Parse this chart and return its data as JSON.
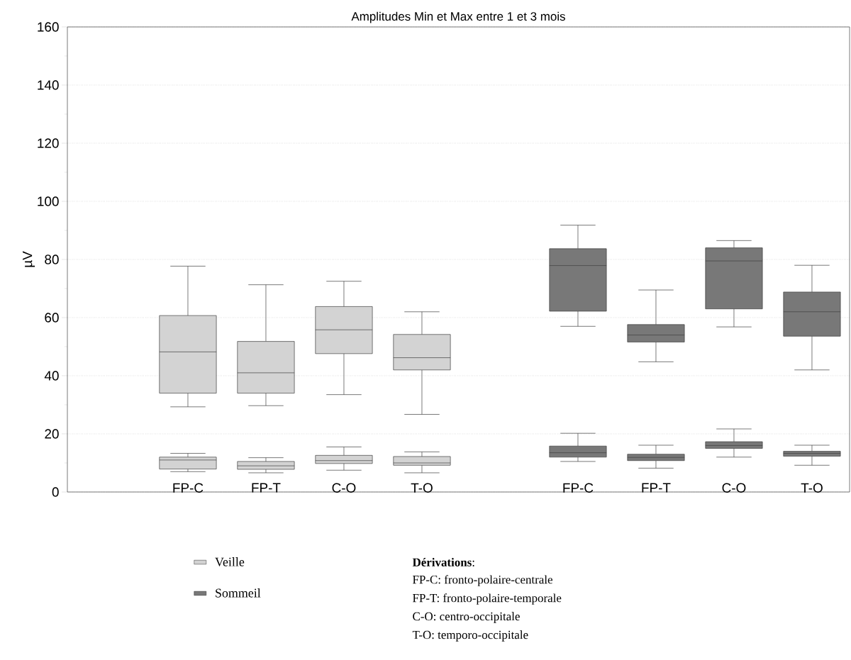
{
  "chart_data": {
    "type": "box",
    "title": "Amplitudes Min et Max entre 1 et 3 mois",
    "ylabel": "µV",
    "categories": [
      "FP-C",
      "FP-T",
      "C-O",
      "T-O",
      null,
      "FP-C",
      "FP-T",
      "C-O",
      "T-O"
    ],
    "ylim": [
      0,
      160
    ],
    "yticks": [
      0,
      20,
      40,
      60,
      80,
      100,
      120,
      140,
      160
    ],
    "grid": "y",
    "legend": "bottom",
    "series": [
      {
        "name": "Veille",
        "color": "#d3d3d3",
        "boxes": [
          {
            "low": 29.3,
            "q1": 34,
            "median": 48.2,
            "q3": 60.7,
            "high": 77.7
          },
          {
            "low": 29.7,
            "q1": 34,
            "median": 41,
            "q3": 51.8,
            "high": 71.3
          },
          {
            "low": 33.5,
            "q1": 47.6,
            "median": 55.8,
            "q3": 63.8,
            "high": 72.5
          },
          {
            "low": 26.7,
            "q1": 42,
            "median": 46.2,
            "q3": 54.2,
            "high": 62
          },
          null,
          null,
          null,
          null,
          null
        ]
      },
      {
        "color": "#d3d3d3",
        "boxes": [
          {
            "low": 7,
            "q1": 7.9,
            "median": 11,
            "q3": 12,
            "high": 13.3
          },
          {
            "low": 6.6,
            "q1": 7.8,
            "median": 9,
            "q3": 10.5,
            "high": 11.8
          },
          {
            "low": 7.5,
            "q1": 9.8,
            "median": 10.8,
            "q3": 12.6,
            "high": 15.5
          },
          {
            "low": 6.6,
            "q1": 9.2,
            "median": 10,
            "q3": 12.2,
            "high": 13.8
          },
          null,
          null,
          null,
          null,
          null
        ]
      },
      {
        "name": "Sommeil",
        "color": "#787878",
        "boxes": [
          null,
          null,
          null,
          null,
          null,
          {
            "low": 57,
            "q1": 62.2,
            "median": 77.9,
            "q3": 83.7,
            "high": 91.8
          },
          {
            "low": 44.8,
            "q1": 51.6,
            "median": 54,
            "q3": 57.6,
            "high": 69.5
          },
          {
            "low": 56.8,
            "q1": 63,
            "median": 79.5,
            "q3": 84,
            "high": 86.5
          },
          {
            "low": 42,
            "q1": 53.6,
            "median": 62,
            "q3": 68.8,
            "high": 78
          }
        ]
      },
      {
        "color": "#787878",
        "boxes": [
          null,
          null,
          null,
          null,
          null,
          {
            "low": 10.5,
            "q1": 12,
            "median": 13.5,
            "q3": 15.8,
            "high": 20.2
          },
          {
            "low": 8.2,
            "q1": 10.8,
            "median": 11.9,
            "q3": 13,
            "high": 16.1
          },
          {
            "low": 12,
            "q1": 15,
            "median": 16,
            "q3": 17.3,
            "high": 21.7
          },
          {
            "low": 9.2,
            "q1": 12.3,
            "median": 13.3,
            "q3": 14,
            "high": 16.1
          }
        ]
      }
    ],
    "annotations": [
      "**Dérivations**:",
      "FP-C: fronto-polaire-centrale",
      "FP-T: fronto-polaire-temporale",
      "C-O: centro-occipitale",
      "T-O: temporo-occipitale"
    ]
  }
}
